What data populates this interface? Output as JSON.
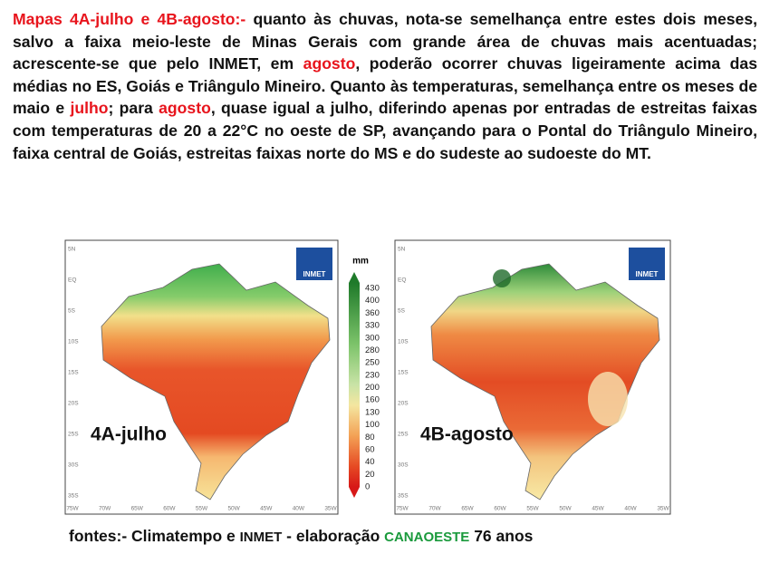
{
  "paragraph": [
    {
      "text": "Mapas 4A-julho e 4B-agosto:-",
      "color": "#e8141c"
    },
    {
      "text": " quanto às chuvas, nota-se semelhança entre estes dois meses, salvo a faixa meio-leste de Minas Gerais com grande área de chuvas mais acentuadas; acrescente-se que pelo INMET, em ",
      "color": "#111111"
    },
    {
      "text": "agosto",
      "color": "#e8141c"
    },
    {
      "text": ", poderão ocorrer chuvas ligeiramente acima das médias no ES, Goiás e Triângulo Mineiro. Quanto às temperaturas, semelhança entre os meses de maio e ",
      "color": "#111111"
    },
    {
      "text": "julho",
      "color": "#e8141c"
    },
    {
      "text": "; para ",
      "color": "#111111"
    },
    {
      "text": "agosto",
      "color": "#e8141c"
    },
    {
      "text": ", quase igual a julho, diferindo apenas por entradas de estreitas faixas com temperaturas de 20 a 22°C no oeste de SP, avançando para o Pontal do Triângulo Mineiro, faixa central de Goiás, estreitas faixas norte do MS e do sudeste ao sudoeste do MT.",
      "color": "#111111"
    }
  ],
  "maps": [
    {
      "label": "4A-julho",
      "logo": "INMET"
    },
    {
      "label": "4B-agosto",
      "logo": "INMET"
    }
  ],
  "map_axes": {
    "lat": [
      "5N",
      "EQ",
      "5S",
      "10S",
      "15S",
      "20S",
      "25S",
      "30S",
      "35S"
    ],
    "lon": [
      "75W",
      "70W",
      "65W",
      "60W",
      "55W",
      "50W",
      "45W",
      "40W",
      "35W"
    ]
  },
  "legend": {
    "unit": "mm",
    "labels": [
      "430",
      "400",
      "360",
      "330",
      "300",
      "280",
      "250",
      "230",
      "200",
      "160",
      "130",
      "100",
      "80",
      "60",
      "40",
      "20",
      "0"
    ]
  },
  "footer": [
    {
      "text": "fontes:- Climatempo e ",
      "color": "#111111"
    },
    {
      "text": "INMET",
      "color": "#111111"
    },
    {
      "text": " - elaboração ",
      "color": "#111111"
    },
    {
      "text": "CANAOESTE",
      "color": "#1a9a3c"
    },
    {
      "text": " 76 anos",
      "color": "#111111"
    }
  ]
}
